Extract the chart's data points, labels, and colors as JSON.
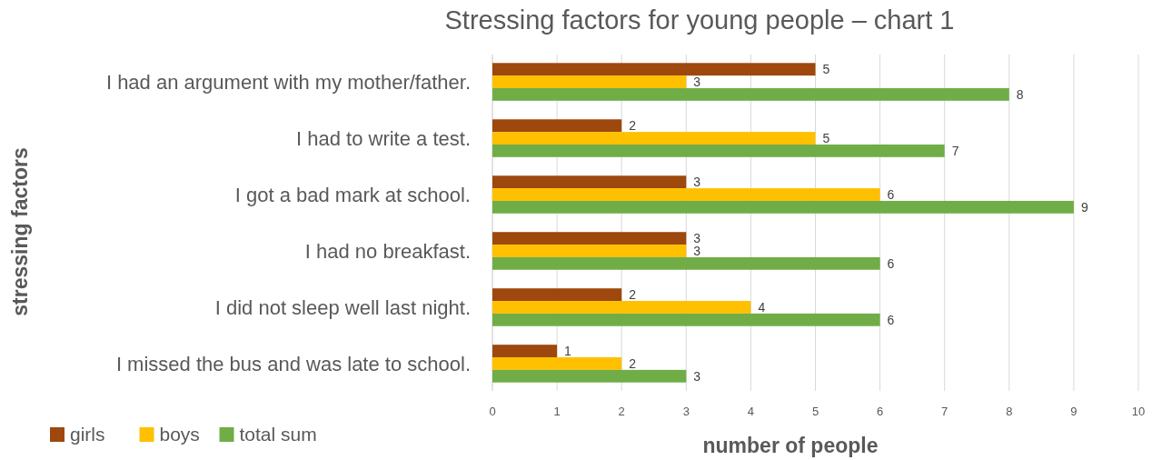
{
  "chart_data": {
    "type": "bar",
    "orientation": "horizontal",
    "title": "Stressing factors for young people – chart 1",
    "xlabel": "number of people",
    "ylabel": "stressing factors",
    "categories": [
      "I had an argument with my mother/father.",
      "I had to write a test.",
      "I got a bad mark at school.",
      "I had no breakfast.",
      "I did not sleep well last night.",
      "I missed the bus and was late to school."
    ],
    "series": [
      {
        "name": "girls",
        "color": "#9e480e",
        "values": [
          5,
          2,
          3,
          3,
          2,
          1
        ]
      },
      {
        "name": "boys",
        "color": "#ffc000",
        "values": [
          3,
          5,
          6,
          3,
          4,
          2
        ]
      },
      {
        "name": "total sum",
        "color": "#70ad47",
        "values": [
          8,
          7,
          9,
          6,
          6,
          3
        ]
      }
    ],
    "xlim": [
      0,
      10
    ],
    "xticks": [
      0,
      1,
      2,
      3,
      4,
      5,
      6,
      7,
      8,
      9,
      10
    ],
    "grid": "x",
    "legend": "bottom left",
    "data_labels": true
  }
}
